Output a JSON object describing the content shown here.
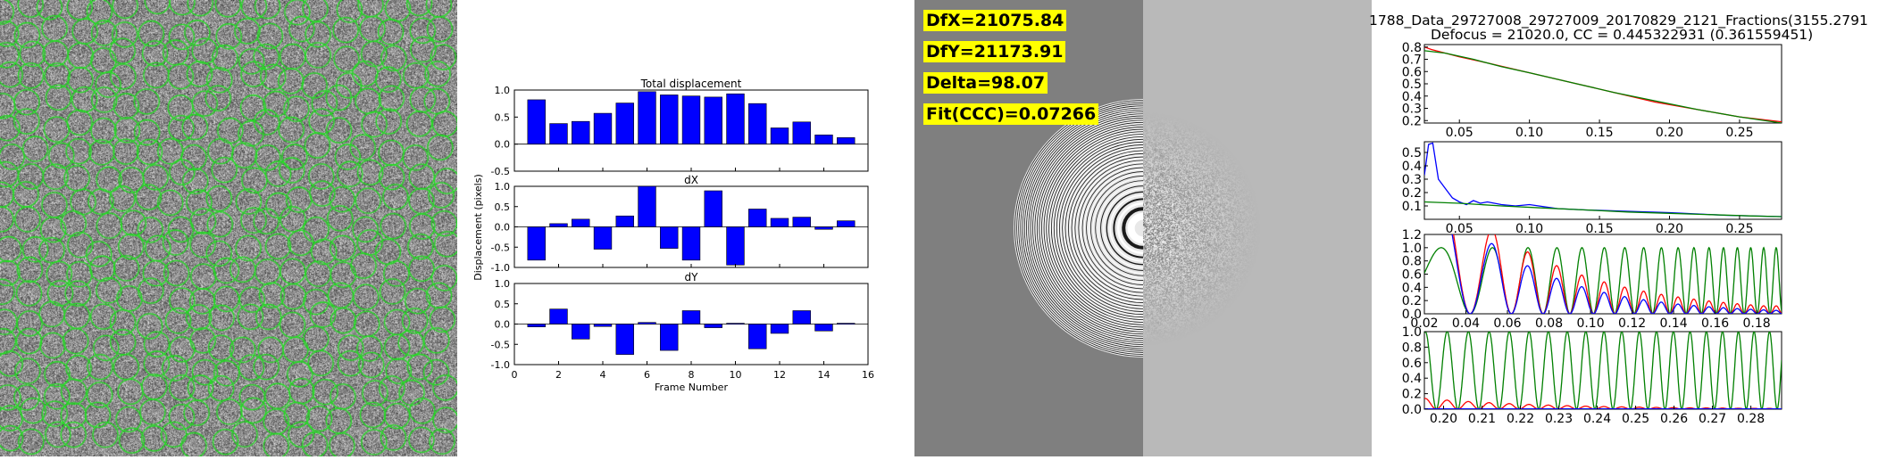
{
  "micrograph": {
    "picked_ring_color": "#22dd22"
  },
  "displacement": {
    "ylabel": "Displacement (pixels)",
    "xlabel": "Frame Number",
    "bar_color": "#0000ff",
    "x_ticks": [
      "0",
      "2",
      "4",
      "6",
      "8",
      "10",
      "12",
      "14",
      "16"
    ],
    "y_ticks_total": [
      "1.0",
      "0.5",
      "0.0",
      "-0.5"
    ],
    "y_ticks": [
      "1.0",
      "0.5",
      "0.0",
      "-0.5",
      "-1.0"
    ]
  },
  "ctf_fit": {
    "labels": [
      "DfX=21075.84",
      "DfY=21173.91",
      "Delta=98.07",
      "Fit(CCC)=0.07266"
    ],
    "label_bg": "#ffff00"
  },
  "ctf_plots": {
    "title_line1": "1788_Data_29727008_29727009_20170829_2121_Fractions(3155.2791",
    "title_line2": "Defocus = 21020.0, CC = 0.445322931 (0.361559451)",
    "colors": {
      "red": "#ff0000",
      "green": "#008000",
      "blue": "#0000ff"
    }
  },
  "chart_data": [
    {
      "type": "bar",
      "title": "Total displacement",
      "xlabel": "",
      "ylabel": "",
      "x": [
        1,
        2,
        3,
        4,
        5,
        6,
        7,
        8,
        9,
        10,
        11,
        12,
        13,
        14,
        15
      ],
      "values": [
        0.82,
        0.38,
        0.42,
        0.57,
        0.76,
        0.97,
        0.91,
        0.89,
        0.87,
        0.93,
        0.75,
        0.3,
        0.41,
        0.17,
        0.12
      ],
      "xlim": [
        0,
        16
      ],
      "ylim": [
        -0.5,
        1.0
      ]
    },
    {
      "type": "bar",
      "title": "dX",
      "x": [
        1,
        2,
        3,
        4,
        5,
        6,
        7,
        8,
        9,
        10,
        11,
        12,
        13,
        14,
        15
      ],
      "values": [
        -0.82,
        0.08,
        0.19,
        -0.55,
        0.27,
        1.0,
        -0.53,
        -0.82,
        0.89,
        -0.94,
        0.44,
        0.21,
        0.24,
        -0.06,
        0.15
      ],
      "xlim": [
        0,
        16
      ],
      "ylim": [
        -1.0,
        1.0
      ]
    },
    {
      "type": "bar",
      "title": "dY",
      "x": [
        1,
        2,
        3,
        4,
        5,
        6,
        7,
        8,
        9,
        10,
        11,
        12,
        13,
        14,
        15
      ],
      "values": [
        -0.07,
        0.37,
        -0.37,
        -0.06,
        -0.75,
        0.04,
        -0.65,
        0.33,
        -0.09,
        0.02,
        -0.61,
        -0.23,
        0.33,
        -0.17,
        0.02
      ],
      "xlim": [
        0,
        16
      ],
      "ylim": [
        -1.0,
        1.0
      ],
      "xlabel": "Frame Number"
    },
    {
      "type": "line",
      "xlim": [
        0.025,
        0.28
      ],
      "ylim": [
        0.18,
        0.82
      ],
      "x_ticks": [
        "0.05",
        "0.10",
        "0.15",
        "0.20",
        "0.25"
      ],
      "y_ticks": [
        "0.8",
        "0.7",
        "0.6",
        "0.5",
        "0.4",
        "0.3",
        "0.2"
      ],
      "series": [
        {
          "color": "red",
          "x": [
            0.025,
            0.03,
            0.04,
            0.05,
            0.07,
            0.1,
            0.13,
            0.16,
            0.19,
            0.22,
            0.25,
            0.28
          ],
          "values": [
            0.8,
            0.78,
            0.75,
            0.72,
            0.67,
            0.59,
            0.51,
            0.43,
            0.35,
            0.29,
            0.23,
            0.19
          ]
        },
        {
          "color": "green",
          "x": [
            0.025,
            0.04,
            0.06,
            0.08,
            0.1,
            0.13,
            0.16,
            0.19,
            0.22,
            0.25,
            0.28
          ],
          "values": [
            0.77,
            0.75,
            0.7,
            0.64,
            0.59,
            0.51,
            0.43,
            0.36,
            0.29,
            0.23,
            0.18
          ]
        }
      ]
    },
    {
      "type": "line",
      "xlim": [
        0.025,
        0.28
      ],
      "ylim": [
        0.0,
        0.58
      ],
      "x_ticks": [
        "0.05",
        "0.10",
        "0.15",
        "0.20",
        "0.25"
      ],
      "y_ticks": [
        "0.5",
        "0.4",
        "0.3",
        "0.2",
        "0.1"
      ],
      "series": [
        {
          "color": "blue",
          "x": [
            0.025,
            0.028,
            0.031,
            0.035,
            0.04,
            0.045,
            0.05,
            0.055,
            0.06,
            0.065,
            0.07,
            0.08,
            0.09,
            0.1,
            0.12,
            0.14,
            0.17,
            0.2,
            0.24,
            0.28
          ],
          "values": [
            0.33,
            0.56,
            0.57,
            0.3,
            0.23,
            0.16,
            0.13,
            0.11,
            0.14,
            0.12,
            0.13,
            0.11,
            0.1,
            0.11,
            0.08,
            0.07,
            0.06,
            0.05,
            0.03,
            0.02
          ]
        },
        {
          "color": "green",
          "x": [
            0.025,
            0.05,
            0.08,
            0.11,
            0.14,
            0.17,
            0.2,
            0.23,
            0.26,
            0.28
          ],
          "values": [
            0.13,
            0.12,
            0.1,
            0.085,
            0.07,
            0.055,
            0.045,
            0.035,
            0.025,
            0.02
          ]
        }
      ]
    },
    {
      "type": "line",
      "xlim": [
        0.02,
        0.192
      ],
      "ylim": [
        0.0,
        1.2
      ],
      "x_ticks": [
        "0.02",
        "0.04",
        "0.06",
        "0.08",
        "0.10",
        "0.12",
        "0.14",
        "0.16",
        "0.18"
      ],
      "y_ticks": [
        "1.2",
        "1.0",
        "0.8",
        "0.6",
        "0.4",
        "0.2",
        "0.0"
      ],
      "series": [
        {
          "color": "green",
          "model": "ctf"
        },
        {
          "color": "red",
          "model": "ctf_data_high"
        },
        {
          "color": "blue",
          "model": "ctf_data_low"
        }
      ]
    },
    {
      "type": "line",
      "xlim": [
        0.195,
        0.288
      ],
      "ylim": [
        0.0,
        1.0
      ],
      "x_ticks": [
        "0.20",
        "0.21",
        "0.22",
        "0.23",
        "0.24",
        "0.25",
        "0.26",
        "0.27",
        "0.28"
      ],
      "y_ticks": [
        "1.0",
        "0.8",
        "0.6",
        "0.4",
        "0.2",
        "0.0"
      ],
      "series": [
        {
          "color": "green",
          "model": "ctf"
        },
        {
          "color": "red",
          "model": "ctf_data_residual"
        },
        {
          "color": "blue",
          "model": "ctf_data_flat"
        }
      ]
    }
  ]
}
